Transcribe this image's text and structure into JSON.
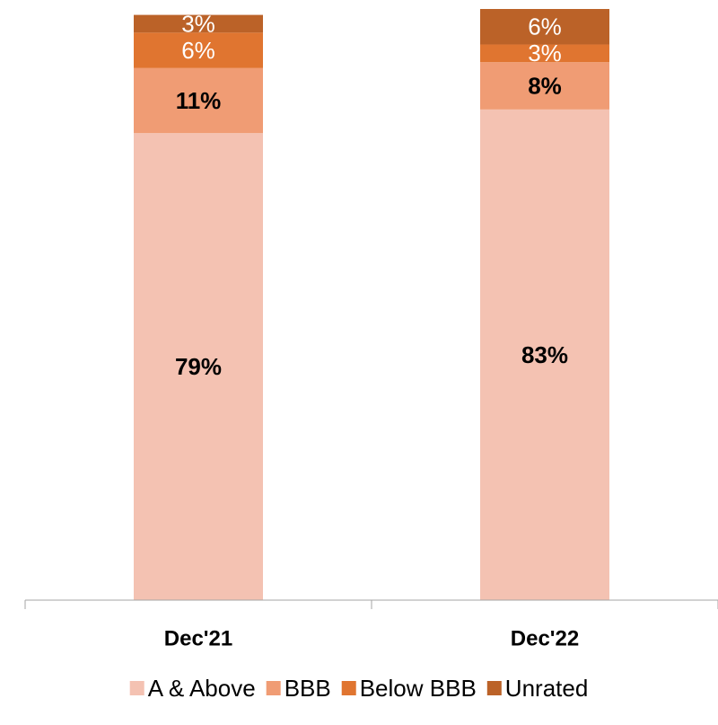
{
  "chart_data": {
    "type": "stacked_bar",
    "categories": [
      "Dec'21",
      "Dec'22"
    ],
    "ylim": [
      0,
      100
    ],
    "series": [
      {
        "name": "A & Above",
        "color": "#f4c2b2",
        "label_color": "#000000",
        "values": [
          79,
          83
        ],
        "value_labels": [
          "79%",
          "83%"
        ]
      },
      {
        "name": "BBB",
        "color": "#f09c74",
        "label_color": "#000000",
        "values": [
          11,
          8
        ],
        "value_labels": [
          "11%",
          "8%"
        ]
      },
      {
        "name": "Below BBB",
        "color": "#e07530",
        "label_color": "#ffffff",
        "values": [
          6,
          3
        ],
        "value_labels": [
          "6%",
          "3%"
        ]
      },
      {
        "name": "Unrated",
        "color": "#bb6228",
        "label_color": "#ffffff",
        "values": [
          3,
          6
        ],
        "value_labels": [
          "3%",
          "6%"
        ]
      }
    ],
    "legend": "bottom"
  }
}
